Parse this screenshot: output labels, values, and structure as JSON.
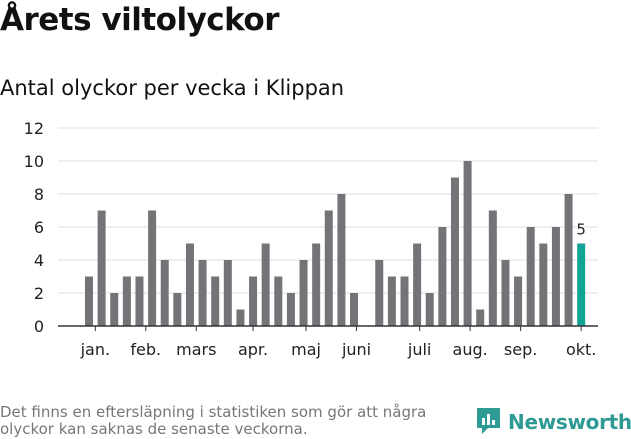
{
  "title": "Årets viltolyckor",
  "subtitle": "Antal olyckor per vecka i Klippan",
  "footnote": "Det finns en eftersläpning i statistiken som gör att några olyckor kan saknas de senaste veckorna.",
  "brand": {
    "name": "Newsworthy",
    "icon": "newsworthy-logo-icon"
  },
  "colors": {
    "bar": "#757378",
    "highlight": "#13a396",
    "grid": "#dddddd",
    "axis": "#333333",
    "brand": "#2e9a94"
  },
  "chart_data": {
    "type": "bar",
    "title": "Antal olyckor per vecka i Klippan",
    "xlabel": "",
    "ylabel": "",
    "ylim": [
      0,
      12
    ],
    "yticks": [
      0,
      2,
      4,
      6,
      8,
      10,
      12
    ],
    "grid": true,
    "weeks": [
      1,
      2,
      3,
      4,
      5,
      6,
      7,
      8,
      9,
      10,
      11,
      12,
      13,
      14,
      15,
      16,
      17,
      18,
      19,
      20,
      21,
      22,
      23,
      24,
      25,
      26,
      27,
      28,
      29,
      30,
      31,
      32,
      33,
      34,
      35,
      36,
      37,
      38,
      39,
      40
    ],
    "values": [
      3,
      7,
      2,
      3,
      3,
      7,
      4,
      2,
      5,
      4,
      3,
      4,
      1,
      3,
      5,
      3,
      2,
      4,
      5,
      7,
      8,
      2,
      null,
      4,
      3,
      3,
      5,
      2,
      6,
      9,
      10,
      1,
      7,
      4,
      3,
      6,
      5,
      6,
      8,
      5
    ],
    "highlight_index": 39,
    "highlight_label": "5",
    "month_labels": [
      {
        "label": "jan.",
        "week": 1.5
      },
      {
        "label": "feb.",
        "week": 5.5
      },
      {
        "label": "mars",
        "week": 9.5
      },
      {
        "label": "apr.",
        "week": 14.0
      },
      {
        "label": "maj",
        "week": 18.2
      },
      {
        "label": "juni",
        "week": 22.2
      },
      {
        "label": "juli",
        "week": 27.2
      },
      {
        "label": "aug.",
        "week": 31.2
      },
      {
        "label": "sep.",
        "week": 35.2
      },
      {
        "label": "okt.",
        "week": 40.0
      }
    ]
  }
}
